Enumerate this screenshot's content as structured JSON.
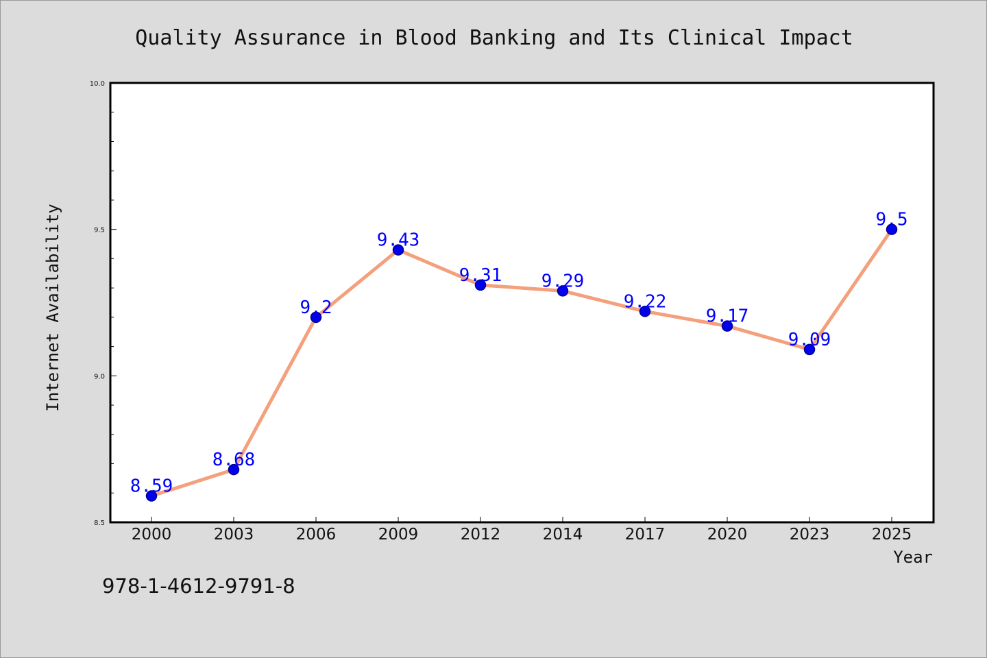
{
  "chart_data": {
    "type": "line",
    "title": "Quality Assurance in Blood Banking and Its Clinical Impact",
    "xlabel": "Year",
    "ylabel": "Internet Availability",
    "categories": [
      "2000",
      "2003",
      "2006",
      "2009",
      "2012",
      "2014",
      "2017",
      "2020",
      "2023",
      "2025"
    ],
    "series": [
      {
        "values": [
          8.59,
          8.68,
          9.2,
          9.43,
          9.31,
          9.29,
          9.22,
          9.17,
          9.09,
          9.5
        ],
        "labels": [
          "8.59",
          "8.68",
          "9.2",
          "9.43",
          "9.31",
          "9.29",
          "9.22",
          "9.17",
          "9.09",
          "9.5"
        ]
      }
    ],
    "ylim": [
      8.5,
      10.0
    ],
    "y_ticks": [
      "8.5",
      "9.0",
      "9.5",
      "10.0"
    ],
    "grid": false,
    "legend": "none",
    "colors": {
      "line": "#f4a07c",
      "marker": "#0000ee",
      "marker_edge": "#00008b",
      "label": "#0000ff",
      "plot_bg": "#ffffff",
      "page_bg": "#dcdcdc"
    }
  },
  "footer": {
    "isbn": "978-1-4612-9791-8"
  }
}
